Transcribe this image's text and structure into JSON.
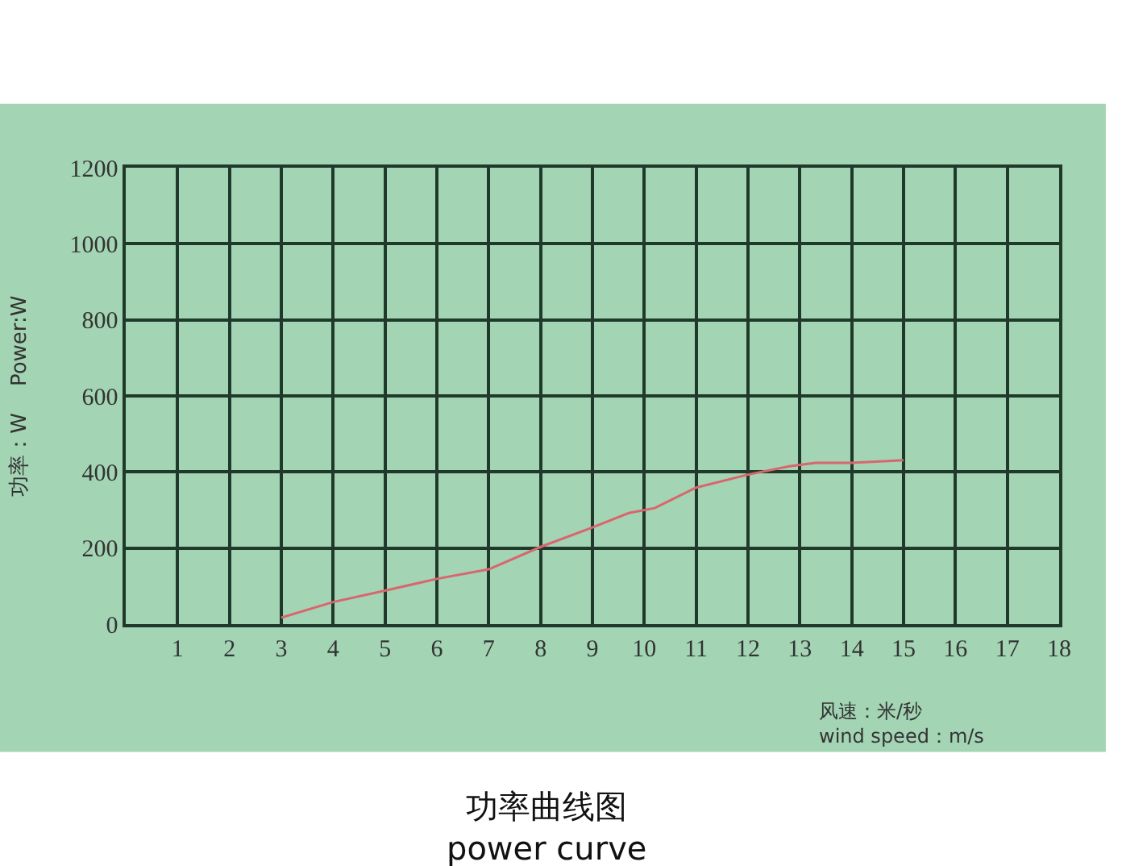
{
  "chart_data": {
    "type": "line",
    "title": "功率曲线图\npower curve",
    "xlabel": "风速：米/秒\nwind speed：m/s",
    "ylabel": "功率：W    Power:W",
    "x": [
      3,
      4,
      5,
      6,
      7,
      8,
      9,
      9.7,
      10.2,
      11,
      12,
      12.8,
      13.3,
      14,
      15
    ],
    "series": [
      {
        "color": "#d9666e",
        "values": [
          17,
          58,
          88,
          119,
          144,
          203,
          254,
          292,
          305,
          359,
          393,
          415,
          424,
          424,
          431
        ]
      }
    ],
    "xlim": [
      0,
      18
    ],
    "xticks": [
      1,
      2,
      3,
      4,
      5,
      6,
      7,
      8,
      9,
      10,
      11,
      12,
      13,
      14,
      15,
      16,
      17,
      18
    ],
    "ylim": [
      0,
      1200
    ],
    "yticks": [
      0,
      200,
      400,
      600,
      800,
      1000,
      1200
    ],
    "grid": true,
    "marker": "none",
    "line_style": "solid"
  }
}
